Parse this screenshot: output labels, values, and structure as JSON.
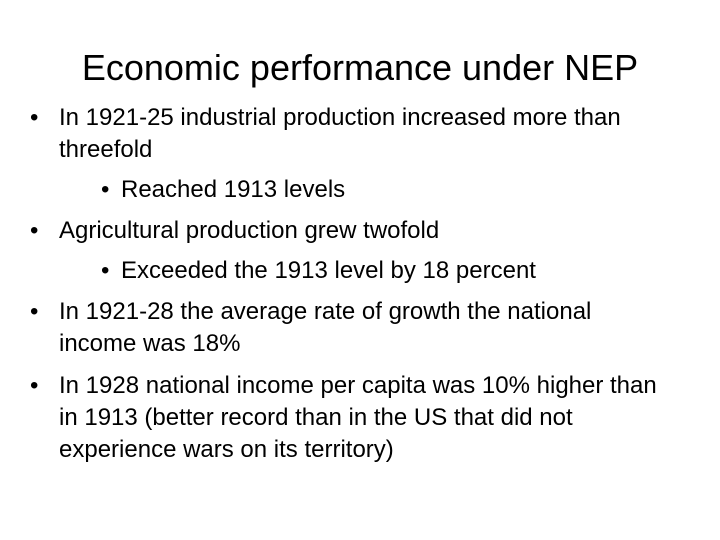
{
  "slide": {
    "title": "Economic performance under NEP",
    "bullet_glyph": "•",
    "bullets": [
      {
        "level": 1,
        "text": "In 1921-25 industrial production increased more than threefold"
      },
      {
        "level": 2,
        "text": "Reached 1913 levels"
      },
      {
        "level": 1,
        "text": "Agricultural production grew twofold"
      },
      {
        "level": 2,
        "text": "Exceeded the 1913 level by 18 percent"
      },
      {
        "level": 1,
        "text": "In 1921-28 the average rate of growth the national income was 18%"
      },
      {
        "level": 1,
        "text": "In 1928 national income per capita was 10% higher than in 1913 (better record than in the US that did not experience wars on its territory)"
      }
    ]
  }
}
